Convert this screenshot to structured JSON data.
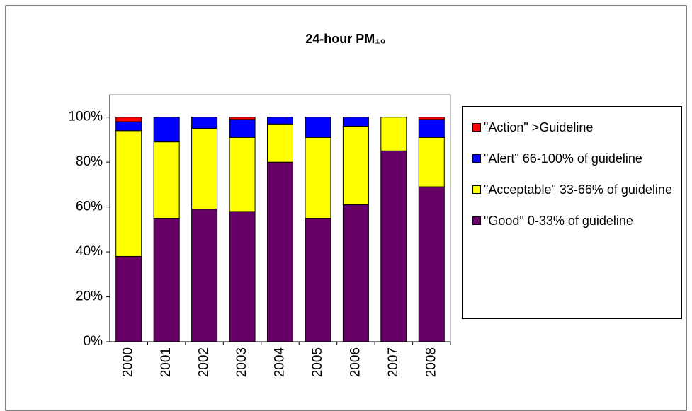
{
  "chart_data": {
    "type": "stacked_bar",
    "title": "24-hour PM₁₀",
    "categories": [
      "2000",
      "2001",
      "2002",
      "2003",
      "2004",
      "2005",
      "2006",
      "2007",
      "2008"
    ],
    "series": [
      {
        "name": "\"Good\" 0-33% of guideline",
        "color": "#660066",
        "values": [
          38,
          55,
          59,
          58,
          80,
          55,
          61,
          85,
          69
        ]
      },
      {
        "name": "\"Acceptable\" 33-66% of guideline",
        "color": "#ffff00",
        "values": [
          56,
          34,
          36,
          33,
          17,
          36,
          35,
          15,
          22
        ]
      },
      {
        "name": "\"Alert\" 66-100% of guideline",
        "color": "#0000ff",
        "values": [
          4,
          11,
          5,
          8,
          3,
          9,
          4,
          0,
          8
        ]
      },
      {
        "name": "\"Action\" >Guideline",
        "color": "#ff0000",
        "values": [
          2,
          0,
          0,
          1,
          0,
          0,
          0,
          0,
          1
        ]
      }
    ],
    "ylim": [
      0,
      110
    ],
    "yticks": [
      {
        "value": 0,
        "label": "0%"
      },
      {
        "value": 20,
        "label": "20%"
      },
      {
        "value": 40,
        "label": "40%"
      },
      {
        "value": 60,
        "label": "60%"
      },
      {
        "value": 80,
        "label": "80%"
      },
      {
        "value": 100,
        "label": "100%"
      }
    ],
    "grid": false,
    "legend": "right"
  }
}
